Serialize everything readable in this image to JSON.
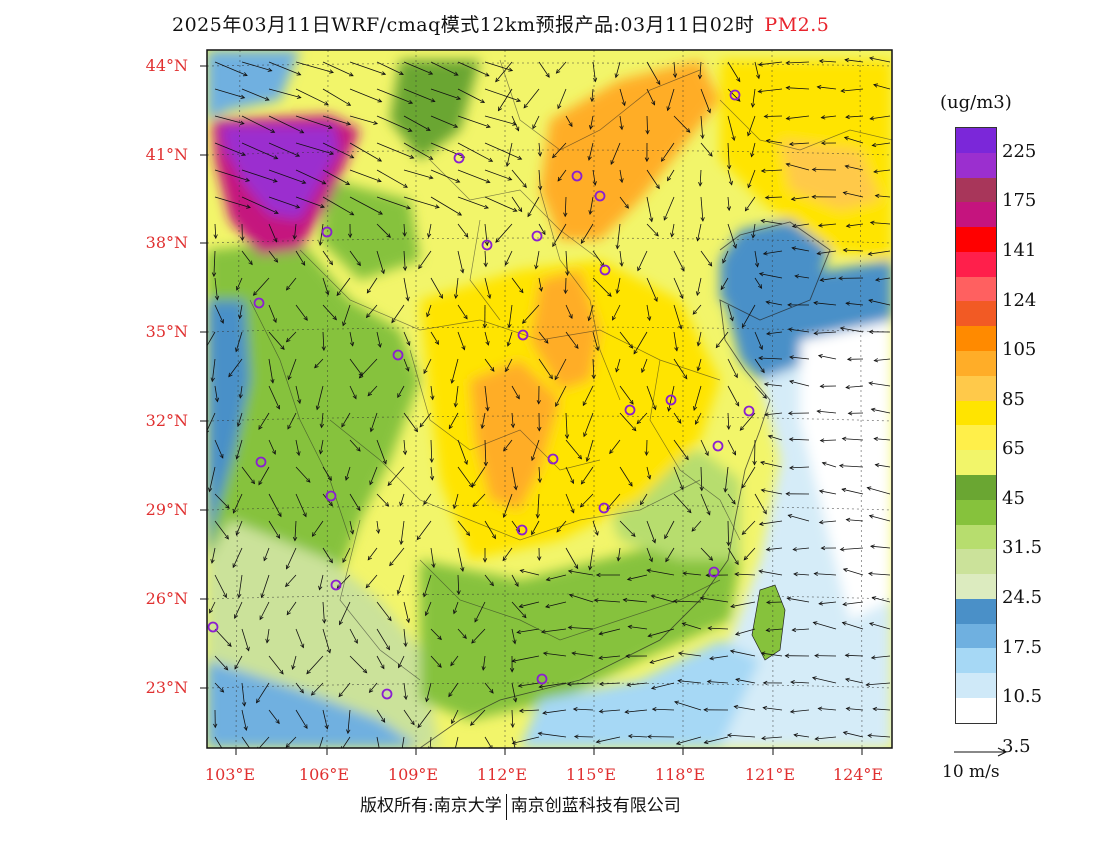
{
  "title": {
    "main": "2025年03月11日WRF/cmaq模式12km预报产品:03月11日02时",
    "pollutant": "PM2.5",
    "pollutant_color": "#e8232c"
  },
  "axes": {
    "lat_labels": [
      "44°N",
      "41°N",
      "38°N",
      "35°N",
      "32°N",
      "29°N",
      "26°N",
      "23°N"
    ],
    "lon_labels": [
      "103°E",
      "106°E",
      "109°E",
      "112°E",
      "115°E",
      "118°E",
      "121°E",
      "124°E"
    ],
    "label_color": "#e03030"
  },
  "legend": {
    "unit": "(ug/m3)",
    "colors": [
      "#7b27d9",
      "#9b2fcf",
      "#a8365a",
      "#c5147e",
      "#ff0000",
      "#ff1f4b",
      "#ff6060",
      "#f25a24",
      "#ff8a00",
      "#ffad28",
      "#ffc94a",
      "#ffe400",
      "#ffef4a",
      "#f2f56a",
      "#6aa632",
      "#86c23c",
      "#b7dd6e",
      "#cbe29a",
      "#dcebbf",
      "#4a90c8",
      "#6fb0e0",
      "#a6d8f5",
      "#cfe9f8",
      "#ffffff"
    ],
    "labels": [
      "225",
      "175",
      "141",
      "124",
      "105",
      "85",
      "65",
      "45",
      "31.5",
      "24.5",
      "17.5",
      "10.5",
      "3.5"
    ]
  },
  "wind_reference": {
    "label": "10 m/s"
  },
  "footer": {
    "left": "版权所有:南京大学",
    "right": "南京创蓝科技有限公司"
  },
  "map_colors": {
    "sea_light": "#d5ecf8",
    "sea_mid": "#a6d8f5",
    "blue_dark": "#4a90c8",
    "green_pale": "#cbe29a",
    "green_mid": "#86c23c",
    "green_dark": "#6aa632",
    "yellow_light": "#f2f56a",
    "yellow": "#ffe400",
    "gold": "#ffc94a",
    "orange": "#ffad28",
    "orange_dark": "#ff8a00",
    "red_magenta": "#c5147e",
    "purple": "#9b2fcf",
    "city_marker": "#8a1fd0"
  }
}
